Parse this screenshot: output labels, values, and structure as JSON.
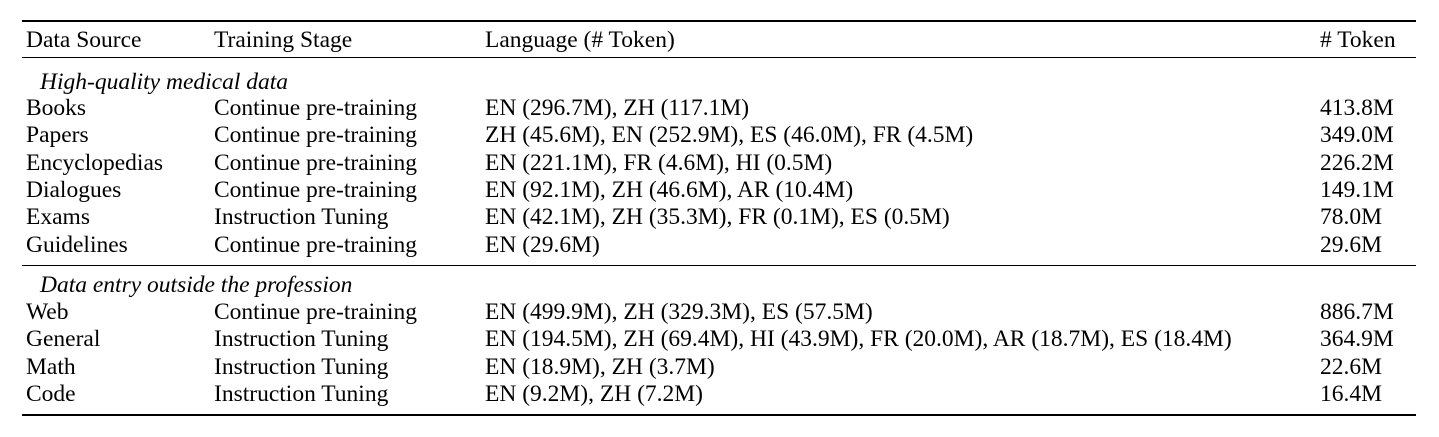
{
  "headers": [
    "Data Source",
    "Training Stage",
    "Language (# Token)",
    "# Token"
  ],
  "sections": [
    {
      "title": "High-quality medical data",
      "rows": [
        [
          "Books",
          "Continue pre-training",
          "EN (296.7M), ZH (117.1M)",
          "413.8M"
        ],
        [
          "Papers",
          "Continue pre-training",
          "ZH (45.6M), EN (252.9M), ES (46.0M), FR (4.5M)",
          "349.0M"
        ],
        [
          "Encyclopedias",
          "Continue pre-training",
          "EN (221.1M), FR (4.6M), HI (0.5M)",
          "226.2M"
        ],
        [
          "Dialogues",
          "Continue pre-training",
          "EN (92.1M), ZH (46.6M), AR (10.4M)",
          "149.1M"
        ],
        [
          "Exams",
          "Instruction Tuning",
          "EN (42.1M), ZH (35.3M), FR (0.1M), ES (0.5M)",
          "78.0M"
        ],
        [
          "Guidelines",
          "Continue pre-training",
          "EN (29.6M)",
          "29.6M"
        ]
      ]
    },
    {
      "title": "Data entry outside the profession",
      "rows": [
        [
          "Web",
          "Continue pre-training",
          "EN (499.9M), ZH (329.3M), ES (57.5M)",
          "886.7M"
        ],
        [
          "General",
          "Instruction Tuning",
          "EN (194.5M), ZH (69.4M), HI (43.9M), FR (20.0M), AR (18.7M), ES (18.4M)",
          "364.9M"
        ],
        [
          "Math",
          "Instruction Tuning",
          "EN (18.9M), ZH (3.7M)",
          "22.6M"
        ],
        [
          "Code",
          "Instruction Tuning",
          "EN (9.2M), ZH (7.2M)",
          "16.4M"
        ]
      ]
    }
  ]
}
